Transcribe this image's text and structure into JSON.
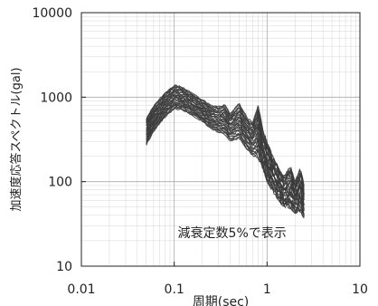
{
  "chart_data": {
    "type": "line",
    "xlabel": "周期(sec)",
    "ylabel": "加速度応答スペクトル(gal)",
    "annotation": "減衰定数5%で表示",
    "x_scale": "log",
    "y_scale": "log",
    "xlim": [
      0.01,
      10
    ],
    "ylim": [
      10,
      10000
    ],
    "x_ticks": [
      {
        "value": 0.01,
        "label": "0.01"
      },
      {
        "value": 0.1,
        "label": "0.1"
      },
      {
        "value": 1,
        "label": "1"
      },
      {
        "value": 10,
        "label": "10"
      }
    ],
    "y_ticks": [
      {
        "value": 10,
        "label": "10"
      },
      {
        "value": 100,
        "label": "100"
      },
      {
        "value": 1000,
        "label": "1000"
      },
      {
        "value": 10000,
        "label": "10000"
      }
    ],
    "grid": true,
    "legend": "none",
    "colors": {
      "line": "#3a3a3a",
      "axis": "#222222",
      "grid": "#d6d6d6",
      "background": "#ffffff"
    },
    "series_count": 30,
    "envelope": {
      "x": [
        0.05,
        0.06,
        0.08,
        0.1,
        0.12,
        0.15,
        0.2,
        0.25,
        0.3,
        0.35,
        0.4,
        0.5,
        0.6,
        0.7,
        0.8,
        0.9,
        1.0,
        1.2,
        1.5,
        1.8,
        2.0,
        2.3,
        2.5
      ],
      "upper": [
        560,
        800,
        1150,
        1400,
        1350,
        1150,
        950,
        800,
        780,
        820,
        650,
        850,
        600,
        500,
        800,
        420,
        300,
        180,
        120,
        150,
        100,
        150,
        90
      ],
      "lower": [
        270,
        390,
        580,
        720,
        700,
        620,
        510,
        420,
        380,
        360,
        300,
        320,
        240,
        200,
        190,
        140,
        100,
        70,
        50,
        48,
        42,
        45,
        35
      ]
    }
  }
}
